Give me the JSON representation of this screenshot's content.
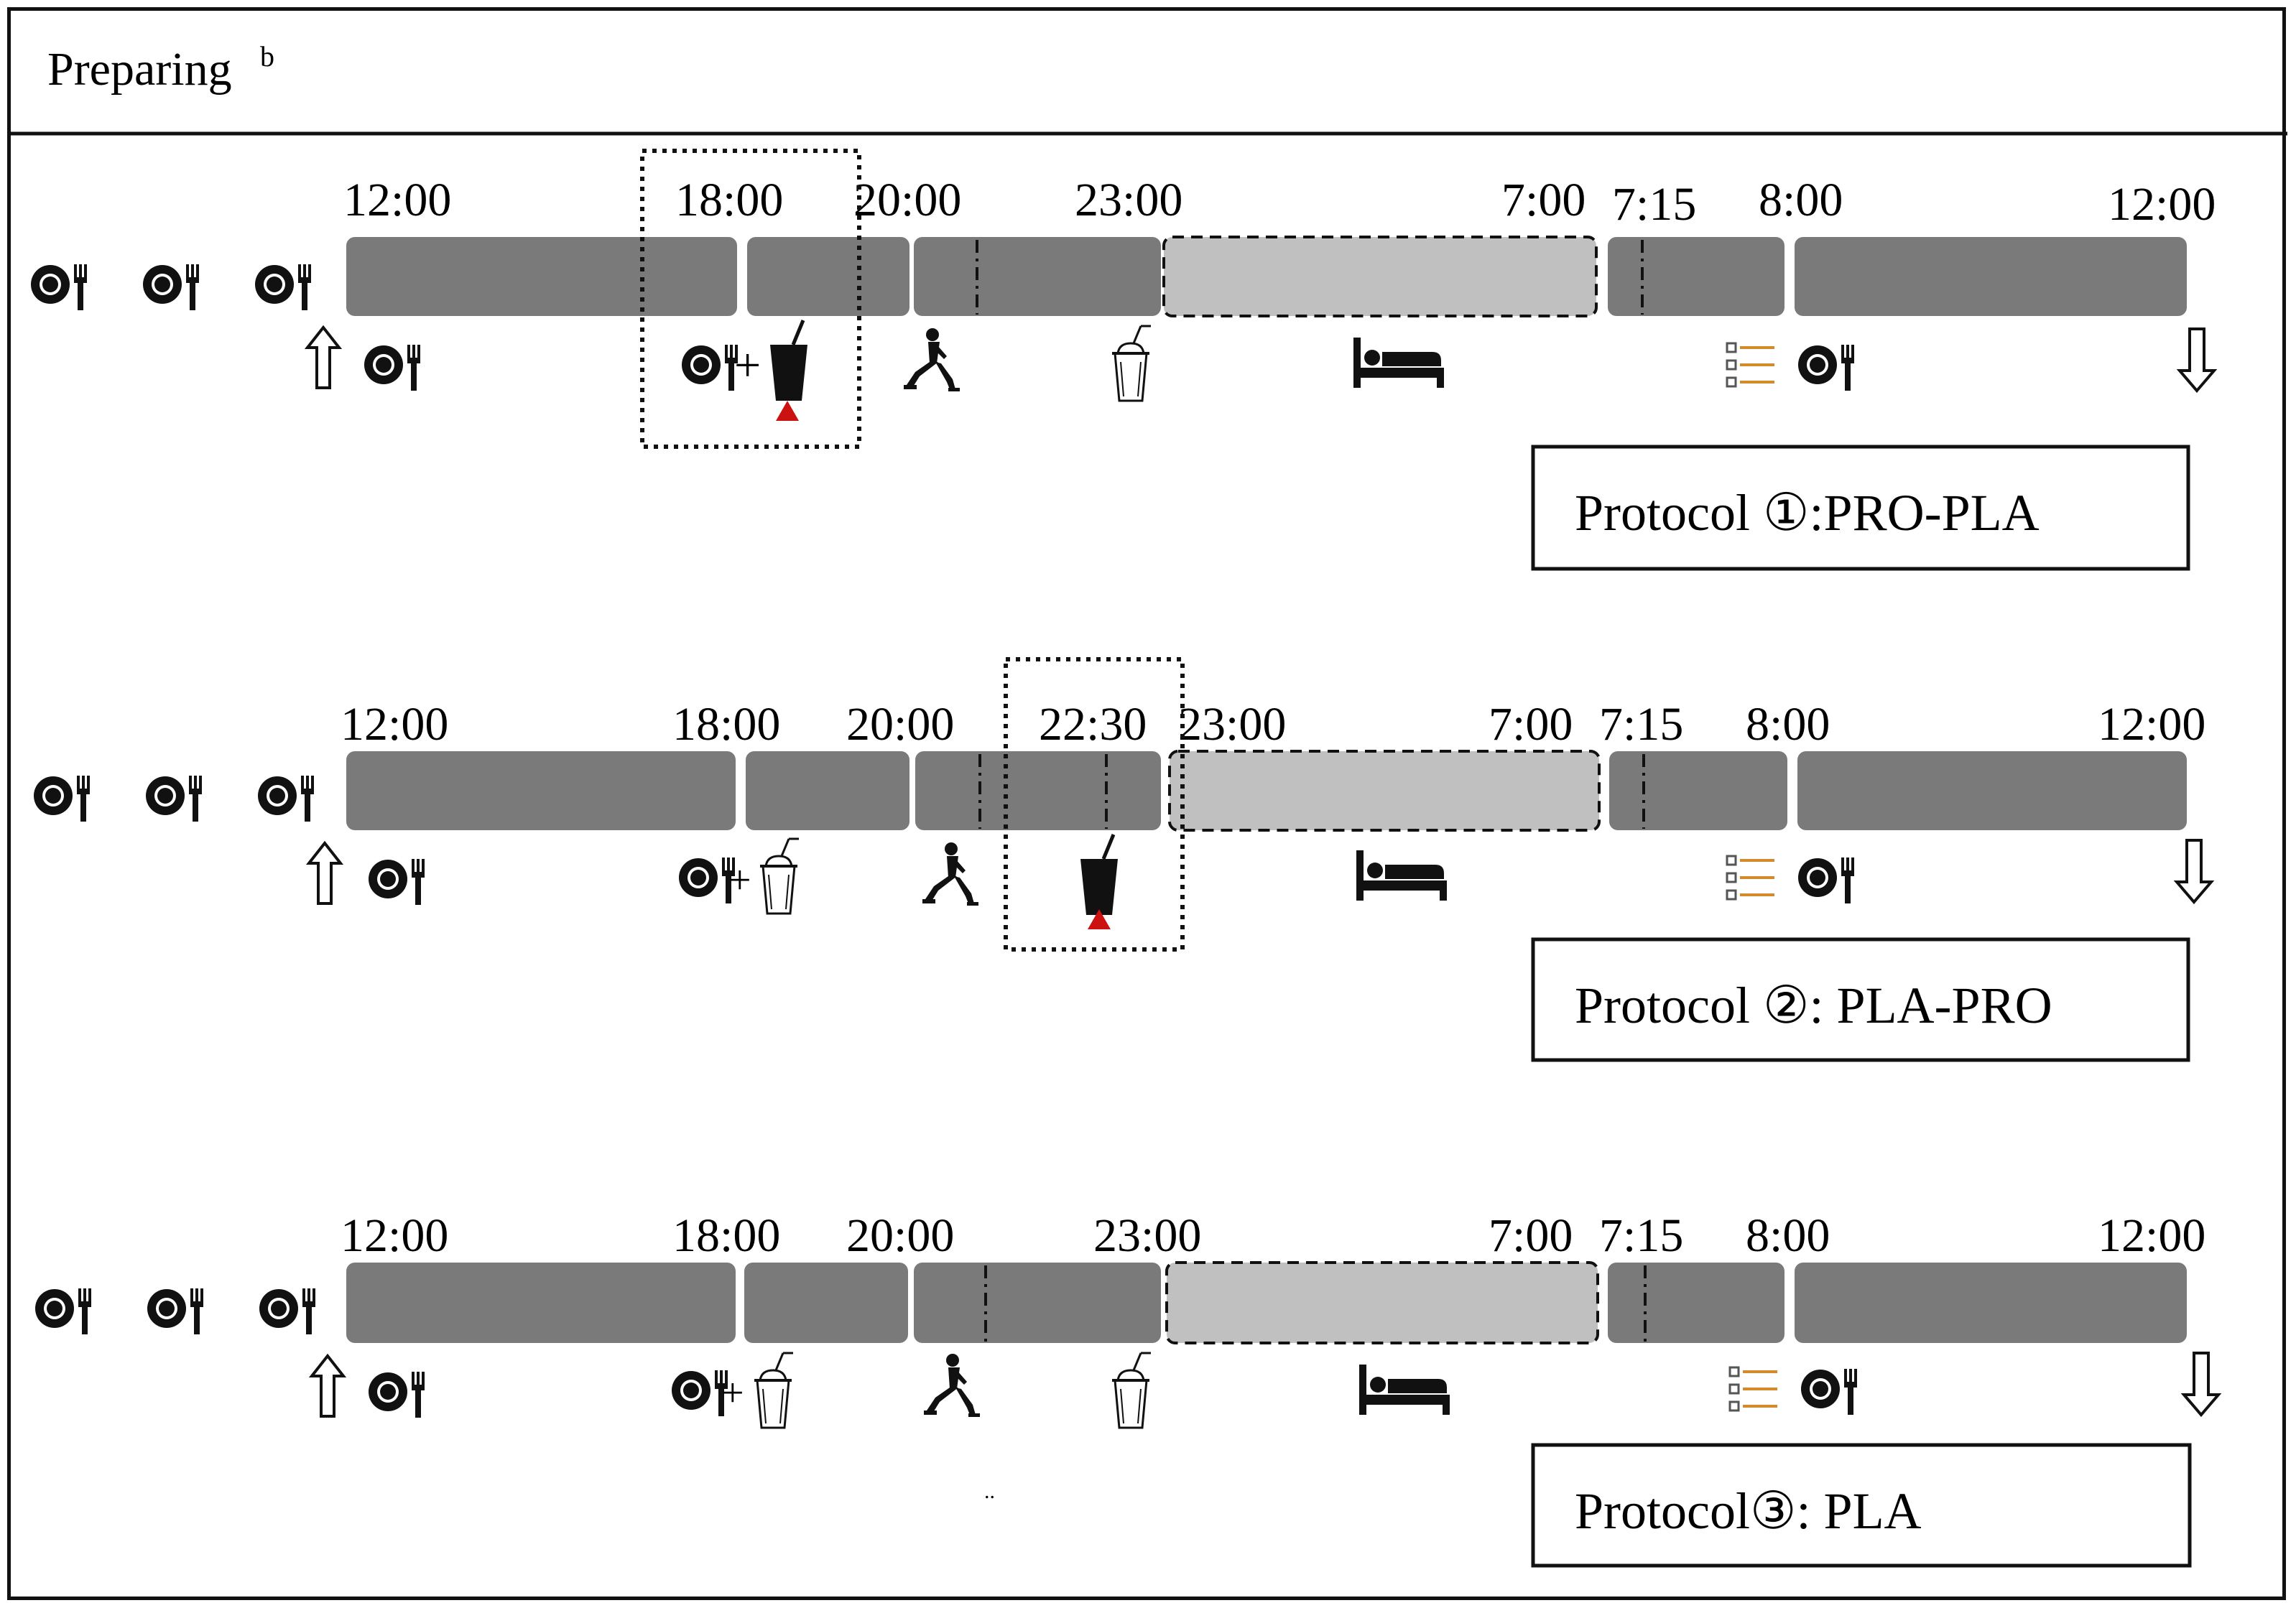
{
  "header": {
    "title": "Preparing",
    "superscript": "b"
  },
  "colors": {
    "bar": "#7a7a7a",
    "sleep": "#c0c0c0",
    "border": "#111111",
    "supplement_marker": "#cc1111",
    "list_lines": "#d28a2a"
  },
  "protocols": [
    {
      "label": "Protocol ①:PRO-PLA",
      "times": [
        "12:00",
        "18:00",
        "20:00",
        "23:00",
        "7:00",
        "7:15",
        "8:00",
        "12:00"
      ],
      "events": {
        "lunch": "plate-fork-icon",
        "dinner": "plate-fork-plus-protein-drink-icon",
        "exercise": "lunge-exercise-icon",
        "bedtime_drink": "placebo-cup-icon",
        "sleep": "bed-icon",
        "breakfast": "questionnaire-plate-icon"
      },
      "highlight": "18:00"
    },
    {
      "label": "Protocol ②: PLA-PRO",
      "times": [
        "12:00",
        "18:00",
        "20:00",
        "22:30",
        "23:00",
        "7:00",
        "7:15",
        "8:00",
        "12:00"
      ],
      "events": {
        "lunch": "plate-fork-icon",
        "dinner": "plate-fork-plus-placebo-cup-icon",
        "exercise": "lunge-exercise-icon",
        "bedtime_drink": "protein-drink-icon",
        "sleep": "bed-icon",
        "breakfast": "questionnaire-plate-icon"
      },
      "highlight": "22:30"
    },
    {
      "label": "Protocol③: PLA",
      "times": [
        "12:00",
        "18:00",
        "20:00",
        "23:00",
        "7:00",
        "7:15",
        "8:00",
        "12:00"
      ],
      "events": {
        "lunch": "plate-fork-icon",
        "dinner": "plate-fork-plus-placebo-cup-icon",
        "exercise": "lunge-exercise-icon",
        "bedtime_drink": "placebo-cup-icon",
        "sleep": "bed-icon",
        "breakfast": "questionnaire-plate-icon"
      },
      "highlight": ""
    }
  ],
  "stray_mark": "..",
  "icons": {
    "pre_meals": "plate-fork-icon",
    "start": "up-arrow-icon",
    "end": "down-arrow-icon"
  }
}
